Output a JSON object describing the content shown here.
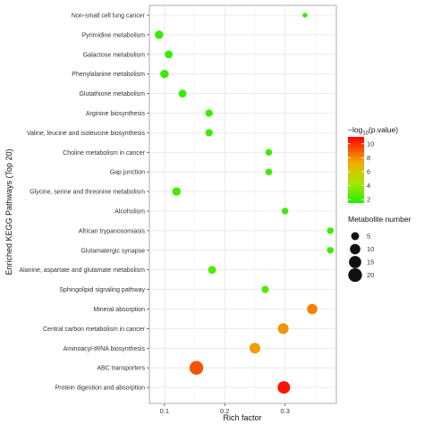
{
  "chart_data": {
    "type": "scatter",
    "xlabel": "Rich factor",
    "ylabel": "Enriched KEGG Pathways (Top 20)",
    "xlim": [
      0.075,
      0.385
    ],
    "x_ticks": [
      "0.1",
      "0.2",
      "0.3"
    ],
    "grid": true,
    "legend_position": "right",
    "color_legend": {
      "title": "−log10(p.value)",
      "title_prefix": "−log",
      "title_sub": "10",
      "title_suffix": "(p.value)",
      "range": [
        1.5,
        11
      ],
      "ticks": [
        "2",
        "4",
        "6",
        "8",
        "10"
      ],
      "colors": [
        "#22dd00",
        "#ff0000"
      ]
    },
    "size_legend": {
      "title": "Metabolite number",
      "values": [
        "5",
        "10",
        "15",
        "20"
      ]
    },
    "categories": [
      "Non-small cell lung cancer",
      "Pyrimidine metabolism",
      "Galactose metabolism",
      "Phenylalanine metabolism",
      "Glutathione metabolism",
      "Arginine biosynthesis",
      "Valine, leucine and isoleucine biosynthesis",
      "Choline metabolism in cancer",
      "Gap junction",
      "Glycine, serine and threonine metabolism",
      "Alcoholism",
      "African trypanosomiasis",
      "Glutamatergic synapse",
      "Alanine, aspartate and glutamate metabolism",
      "Sphingolipid signaling pathway",
      "Mineral absorption",
      "Central carbon metabolism in cancer",
      "Aminoacyl-tRNA biosynthesis",
      "ABC transporters",
      "Protein digestion and absorption"
    ],
    "points": [
      {
        "pathway": "Non-small cell lung cancer",
        "rich_factor": 0.333,
        "neg_log10_p": 1.8,
        "count": 1
      },
      {
        "pathway": "Pyrimidine metabolism",
        "rich_factor": 0.091,
        "neg_log10_p": 2.0,
        "count": 6
      },
      {
        "pathway": "Galactose metabolism",
        "rich_factor": 0.107,
        "neg_log10_p": 1.9,
        "count": 5
      },
      {
        "pathway": "Phenylalanine metabolism",
        "rich_factor": 0.1,
        "neg_log10_p": 2.0,
        "count": 6
      },
      {
        "pathway": "Glutathione metabolism",
        "rich_factor": 0.13,
        "neg_log10_p": 2.0,
        "count": 5
      },
      {
        "pathway": "Arginine biosynthesis",
        "rich_factor": 0.174,
        "neg_log10_p": 2.0,
        "count": 4
      },
      {
        "pathway": "Valine, leucine and isoleucine biosynthesis",
        "rich_factor": 0.174,
        "neg_log10_p": 2.0,
        "count": 4
      },
      {
        "pathway": "Choline metabolism in cancer",
        "rich_factor": 0.273,
        "neg_log10_p": 2.0,
        "count": 3
      },
      {
        "pathway": "Gap junction",
        "rich_factor": 0.273,
        "neg_log10_p": 2.0,
        "count": 3
      },
      {
        "pathway": "Glycine, serine and threonine metabolism",
        "rich_factor": 0.12,
        "neg_log10_p": 2.2,
        "count": 6
      },
      {
        "pathway": "Alcoholism",
        "rich_factor": 0.3,
        "neg_log10_p": 2.0,
        "count": 3
      },
      {
        "pathway": "African trypanosomiasis",
        "rich_factor": 0.375,
        "neg_log10_p": 2.0,
        "count": 3
      },
      {
        "pathway": "Glutamatergic synapse",
        "rich_factor": 0.375,
        "neg_log10_p": 2.0,
        "count": 3
      },
      {
        "pathway": "Alanine, aspartate and glutamate metabolism",
        "rich_factor": 0.179,
        "neg_log10_p": 2.5,
        "count": 5
      },
      {
        "pathway": "Sphingolipid signaling pathway",
        "rich_factor": 0.267,
        "neg_log10_p": 2.5,
        "count": 4
      },
      {
        "pathway": "Mineral absorption",
        "rich_factor": 0.345,
        "neg_log10_p": 8.2,
        "count": 10
      },
      {
        "pathway": "Central carbon metabolism in cancer",
        "rich_factor": 0.297,
        "neg_log10_p": 7.8,
        "count": 11
      },
      {
        "pathway": "Aminoacyl-tRNA biosynthesis",
        "rich_factor": 0.25,
        "neg_log10_p": 7.6,
        "count": 11
      },
      {
        "pathway": "ABC transporters",
        "rich_factor": 0.153,
        "neg_log10_p": 9.2,
        "count": 20
      },
      {
        "pathway": "Protein digestion and absorption",
        "rich_factor": 0.298,
        "neg_log10_p": 10.6,
        "count": 16
      }
    ]
  }
}
